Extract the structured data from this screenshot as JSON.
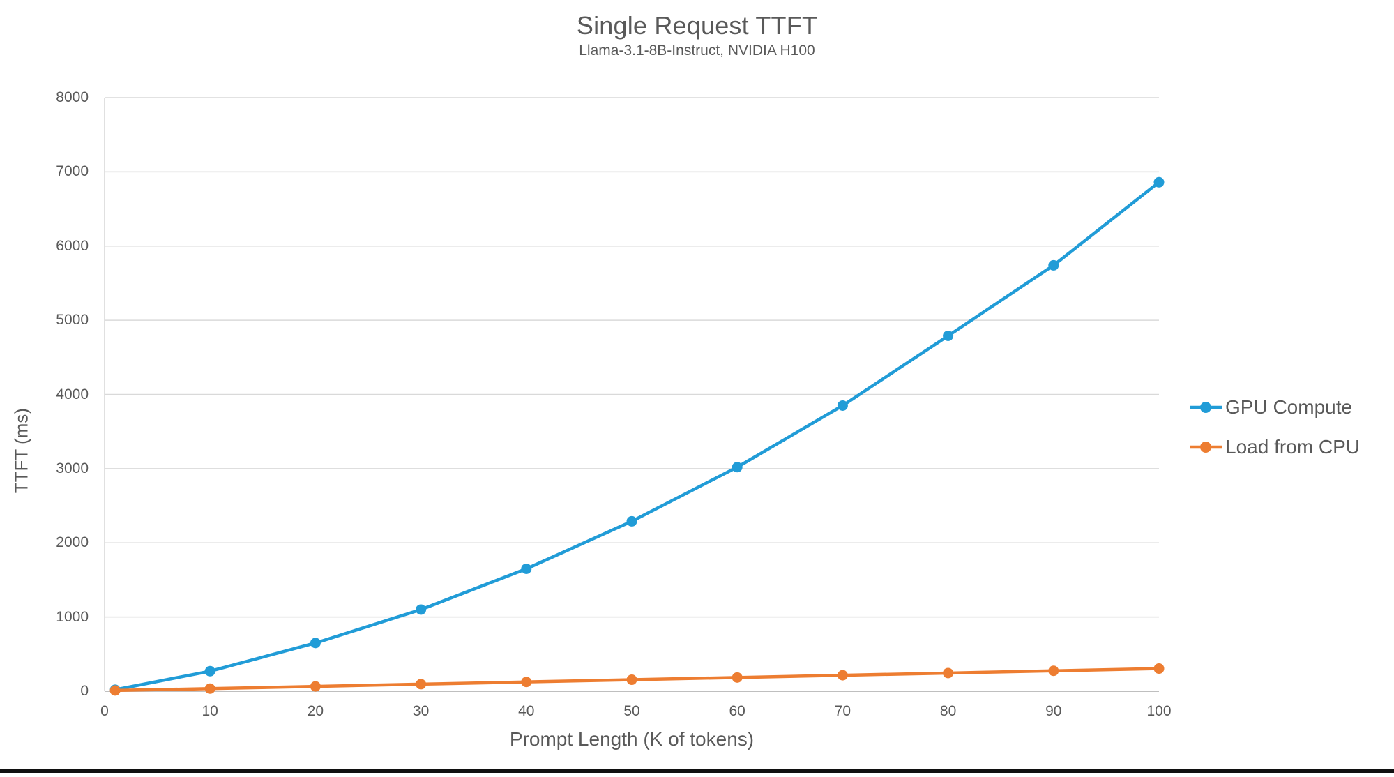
{
  "title": "Single Request TTFT",
  "subtitle": "Llama-3.1-8B-Instruct, NVIDIA H100",
  "chart_data": {
    "type": "line",
    "title": "Single Request TTFT",
    "subtitle": "Llama-3.1-8B-Instruct, NVIDIA H100",
    "xlabel": "Prompt Length (K of tokens)",
    "ylabel": "TTFT (ms)",
    "xlim": [
      0,
      100
    ],
    "ylim": [
      0,
      8000
    ],
    "x_ticks": [
      0,
      10,
      20,
      30,
      40,
      50,
      60,
      70,
      80,
      90,
      100
    ],
    "y_ticks": [
      0,
      1000,
      2000,
      3000,
      4000,
      5000,
      6000,
      7000,
      8000
    ],
    "grid": "horizontal-only",
    "legend_position": "right",
    "x": [
      1,
      10,
      20,
      30,
      40,
      50,
      60,
      70,
      80,
      90,
      100
    ],
    "series": [
      {
        "name": "GPU Compute",
        "color": "#219CD7",
        "values": [
          20,
          270,
          650,
          1100,
          1650,
          2290,
          3020,
          3850,
          4790,
          5740,
          6860
        ]
      },
      {
        "name": "Load from CPU",
        "color": "#ED7D31",
        "values": [
          10,
          35,
          65,
          95,
          125,
          155,
          185,
          215,
          245,
          275,
          305
        ]
      }
    ]
  },
  "colors": {
    "gridline": "#D9D9D9",
    "axis_line": "#BFBFBF",
    "text": "#595959",
    "background": "#FFFFFF",
    "bottom_divider": "#101010"
  }
}
